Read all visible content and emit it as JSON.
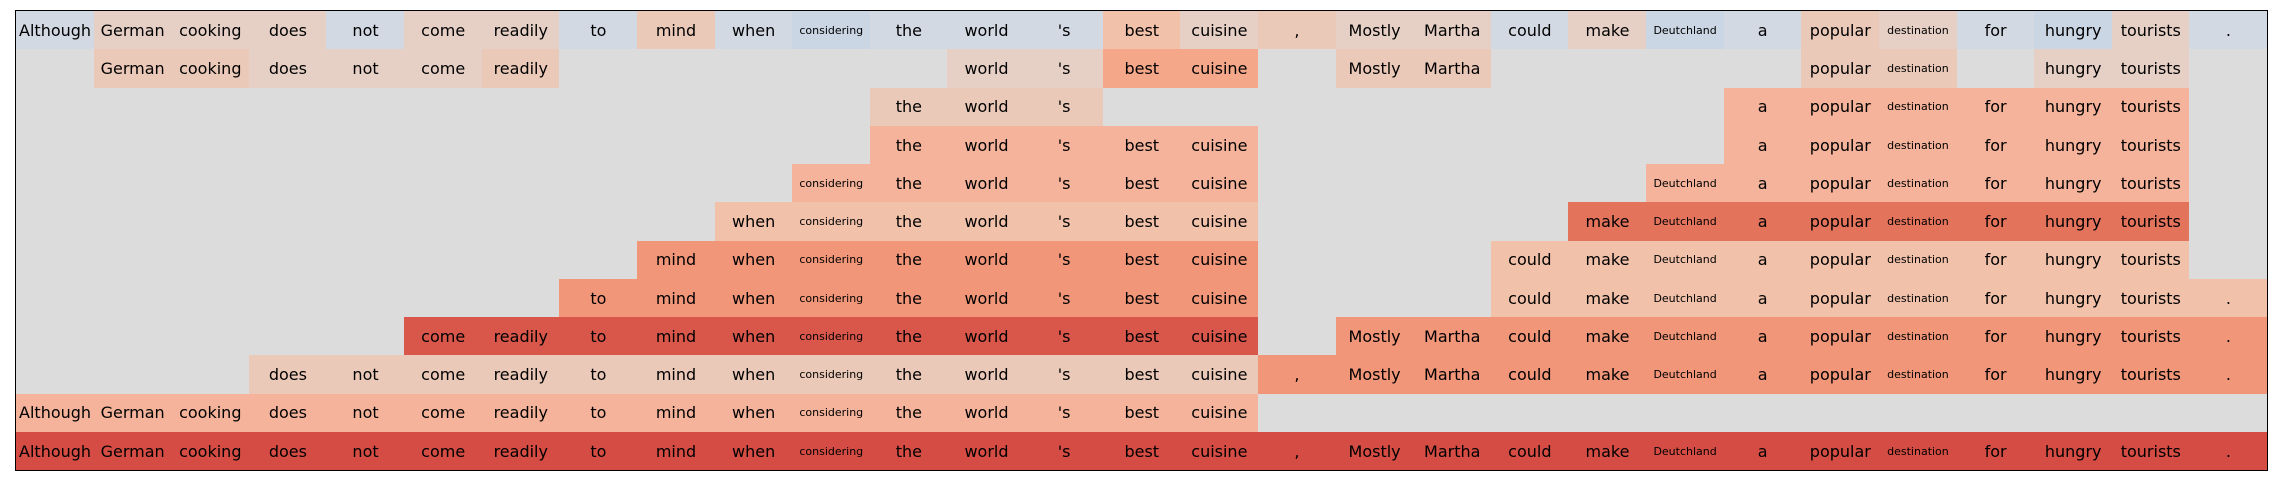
{
  "tokens": [
    "Although",
    "German",
    "cooking",
    "does",
    "not",
    "come",
    "readily",
    "to",
    "mind",
    "when",
    "considering",
    "the",
    "world",
    "'s",
    "best",
    "cuisine",
    ",",
    "Mostly",
    "Martha",
    "could",
    "make",
    "Deutchland",
    "a",
    "popular",
    "destination",
    "for",
    "hungry",
    "tourists",
    "."
  ],
  "small_tokens": [
    "considering",
    "Deutchland",
    "destination"
  ],
  "palette": {
    "empty": "#dcdcdc",
    "blue_light": "#d2d9e3",
    "blue": "#cbd6e4",
    "p1": "#e6d0c6",
    "p2": "#ebc9b8",
    "p3": "#f1c1aa",
    "p4": "#f4b39a",
    "p5": "#f5a78a",
    "p6": "#f19679",
    "p7": "#ec8468",
    "p8": "#e4735c",
    "p9": "#d9574a",
    "p10": "#d44c43"
  },
  "rows": [
    [
      "blue_light",
      "p1",
      "p1",
      "p1",
      "blue_light",
      "p1",
      "p1",
      "blue_light",
      "p2",
      "blue_light",
      "blue",
      "blue_light",
      "blue_light",
      "blue_light",
      "p3",
      "p1",
      "p2",
      "p1",
      "p1",
      "blue_light",
      "p1",
      "blue",
      "blue_light",
      "p2",
      "p1",
      "blue_light",
      "blue",
      "p1",
      "blue_light"
    ],
    [
      "empty",
      "p2",
      "p2",
      "p1",
      "p1",
      "p1",
      "p2",
      "empty",
      "empty",
      "empty",
      "empty",
      "empty",
      "p1",
      "p1",
      "p5",
      "p5",
      "empty",
      "p2",
      "p2",
      "empty",
      "empty",
      "empty",
      "empty",
      "p2",
      "p2",
      "empty",
      "p1",
      "p1",
      "empty"
    ],
    [
      "empty",
      "empty",
      "empty",
      "empty",
      "empty",
      "empty",
      "empty",
      "empty",
      "empty",
      "empty",
      "empty",
      "p2",
      "p2",
      "p2",
      "empty",
      "empty",
      "empty",
      "empty",
      "empty",
      "empty",
      "empty",
      "empty",
      "p4",
      "p4",
      "p4",
      "p4",
      "p4",
      "p4",
      "empty"
    ],
    [
      "empty",
      "empty",
      "empty",
      "empty",
      "empty",
      "empty",
      "empty",
      "empty",
      "empty",
      "empty",
      "empty",
      "p4",
      "p4",
      "p4",
      "p4",
      "p4",
      "empty",
      "empty",
      "empty",
      "empty",
      "empty",
      "empty",
      "p4",
      "p4",
      "p4",
      "p4",
      "p4",
      "p4",
      "empty"
    ],
    [
      "empty",
      "empty",
      "empty",
      "empty",
      "empty",
      "empty",
      "empty",
      "empty",
      "empty",
      "empty",
      "p4",
      "p4",
      "p4",
      "p4",
      "p4",
      "p4",
      "empty",
      "empty",
      "empty",
      "empty",
      "empty",
      "p4",
      "p4",
      "p4",
      "p4",
      "p4",
      "p4",
      "p4",
      "empty"
    ],
    [
      "empty",
      "empty",
      "empty",
      "empty",
      "empty",
      "empty",
      "empty",
      "empty",
      "empty",
      "p3",
      "p3",
      "p3",
      "p3",
      "p3",
      "p3",
      "p3",
      "empty",
      "empty",
      "empty",
      "empty",
      "p8",
      "p8",
      "p8",
      "p8",
      "p8",
      "p8",
      "p8",
      "p8",
      "empty"
    ],
    [
      "empty",
      "empty",
      "empty",
      "empty",
      "empty",
      "empty",
      "empty",
      "empty",
      "p6",
      "p6",
      "p6",
      "p6",
      "p6",
      "p6",
      "p6",
      "p6",
      "empty",
      "empty",
      "empty",
      "p3",
      "p3",
      "p3",
      "p3",
      "p3",
      "p3",
      "p3",
      "p3",
      "p3",
      "empty"
    ],
    [
      "empty",
      "empty",
      "empty",
      "empty",
      "empty",
      "empty",
      "empty",
      "p6",
      "p6",
      "p6",
      "p6",
      "p6",
      "p6",
      "p6",
      "p6",
      "p6",
      "empty",
      "empty",
      "empty",
      "p3",
      "p3",
      "p3",
      "p3",
      "p3",
      "p3",
      "p3",
      "p3",
      "p3",
      "p3"
    ],
    [
      "empty",
      "empty",
      "empty",
      "empty",
      "empty",
      "p9",
      "p9",
      "p9",
      "p9",
      "p9",
      "p9",
      "p9",
      "p9",
      "p9",
      "p9",
      "p9",
      "empty",
      "p6",
      "p6",
      "p6",
      "p6",
      "p6",
      "p6",
      "p6",
      "p6",
      "p6",
      "p6",
      "p6",
      "p6"
    ],
    [
      "empty",
      "empty",
      "empty",
      "p2",
      "p2",
      "p2",
      "p2",
      "p2",
      "p2",
      "p2",
      "p2",
      "p2",
      "p2",
      "p2",
      "p2",
      "p2",
      "p6",
      "p6",
      "p6",
      "p6",
      "p6",
      "p6",
      "p6",
      "p6",
      "p6",
      "p6",
      "p6",
      "p6",
      "p6"
    ],
    [
      "p4",
      "p4",
      "p4",
      "p4",
      "p4",
      "p4",
      "p4",
      "p4",
      "p4",
      "p4",
      "p4",
      "p4",
      "p4",
      "p4",
      "p4",
      "p4",
      "empty",
      "empty",
      "empty",
      "empty",
      "empty",
      "empty",
      "empty",
      "empty",
      "empty",
      "empty",
      "empty",
      "empty",
      "empty"
    ],
    [
      "p10",
      "p10",
      "p10",
      "p10",
      "p10",
      "p10",
      "p10",
      "p10",
      "p10",
      "p10",
      "p10",
      "p10",
      "p10",
      "p10",
      "p10",
      "p10",
      "p10",
      "p10",
      "p10",
      "p10",
      "p10",
      "p10",
      "p10",
      "p10",
      "p10",
      "p10",
      "p10",
      "p10",
      "p10"
    ]
  ]
}
